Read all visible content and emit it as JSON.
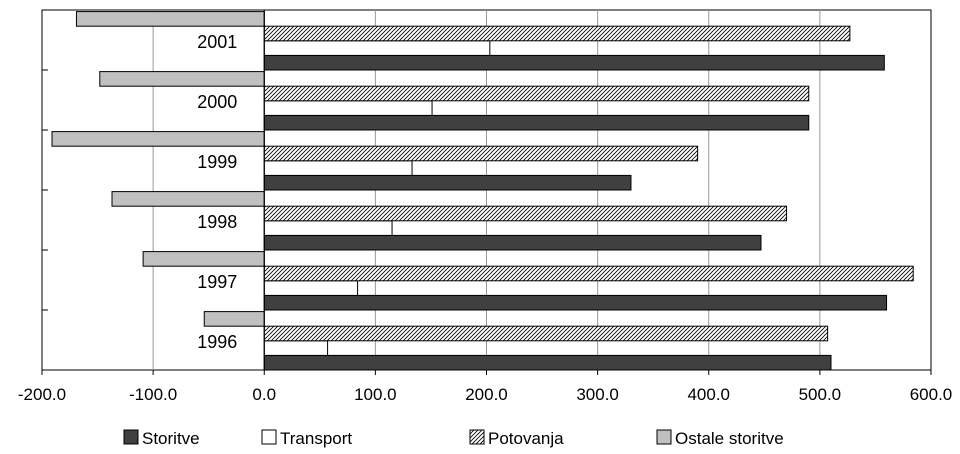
{
  "chart_data": {
    "type": "bar",
    "orientation": "horizontal",
    "categories": [
      "1996",
      "1997",
      "1998",
      "1999",
      "2000",
      "2001"
    ],
    "series": [
      {
        "name": "Storitve",
        "values": [
          510,
          560,
          447,
          330,
          490,
          558
        ],
        "color": "#404040",
        "pattern": "solid"
      },
      {
        "name": "Transport",
        "values": [
          57,
          84,
          115,
          133,
          151,
          203
        ],
        "color": "#ffffff",
        "pattern": "solid"
      },
      {
        "name": "Potovanja",
        "values": [
          507,
          584,
          470,
          390,
          490,
          527
        ],
        "color": "#ffffff",
        "pattern": "hatch"
      },
      {
        "name": "Ostale storitve",
        "values": [
          -54,
          -109,
          -137,
          -191,
          -148,
          -169
        ],
        "color": "#c0c0c0",
        "pattern": "solid"
      }
    ],
    "xlim": [
      -200,
      600
    ],
    "xticks": [
      "-200.0",
      "-100.0",
      "0.0",
      "100.0",
      "200.0",
      "300.0",
      "400.0",
      "500.0",
      "600.0"
    ],
    "xgrid": true,
    "legend_position": "bottom"
  }
}
